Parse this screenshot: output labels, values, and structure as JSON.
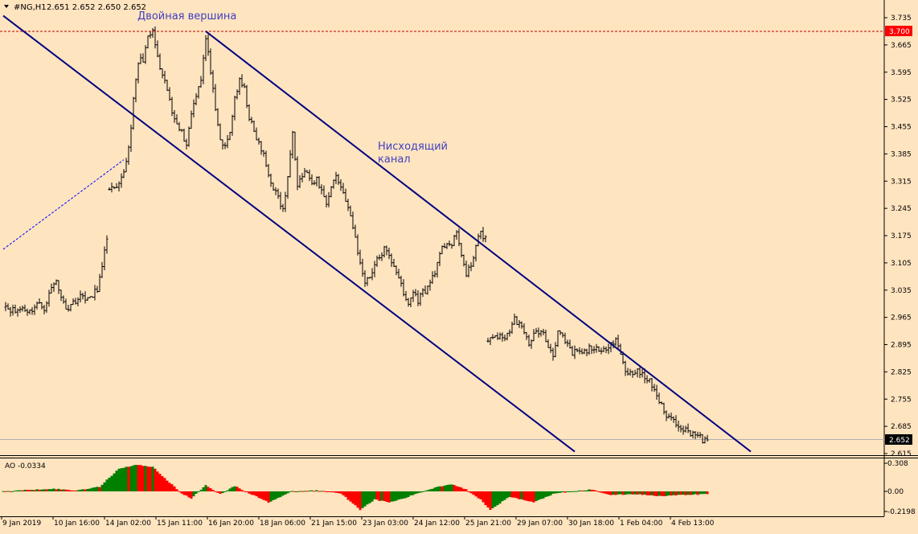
{
  "window": {
    "symbol_title": "#NG,H1",
    "ohlc": "2.651 2.652 2.650 2.652"
  },
  "colors": {
    "background": "#FFE4C0",
    "candles": "#000000",
    "channel": "#000080",
    "annotation": "#4040C0",
    "resistance": "#C00000",
    "ao_up": "#008000",
    "ao_down": "#FF0000",
    "price_tag_red": "#FF0000",
    "price_tag_current": "#000000"
  },
  "annotations": {
    "double_top": "Двойная вершина",
    "channel_line1": "Нисходящий",
    "channel_line2": "канал"
  },
  "price_axis": {
    "ticks": [
      "3.735",
      "3.665",
      "3.595",
      "3.525",
      "3.455",
      "3.385",
      "3.315",
      "3.245",
      "3.175",
      "3.105",
      "3.035",
      "2.965",
      "2.895",
      "2.825",
      "2.755",
      "2.685",
      "2.615"
    ],
    "resistance_tag": "3.700",
    "current_tag": "2.652"
  },
  "time_axis": {
    "labels": [
      "9 Jan 2019",
      "10 Jan 16:00",
      "14 Jan 02:00",
      "15 Jan 11:00",
      "16 Jan 20:00",
      "18 Jan 06:00",
      "21 Jan 15:00",
      "23 Jan 03:00",
      "24 Jan 12:00",
      "25 Jan 21:00",
      "29 Jan 07:00",
      "30 Jan 18:00",
      "1 Feb 04:00",
      "4 Feb 13:00"
    ]
  },
  "indicator": {
    "label": "AO -0.0334",
    "ticks": [
      "0.308",
      "0.00",
      "-0.2198"
    ]
  },
  "chart_data": {
    "type": "candlestick",
    "symbol": "#NG",
    "timeframe": "H1",
    "resistance_level": 3.7,
    "current_price": 2.652,
    "ylim": [
      2.6,
      3.76
    ],
    "price_path": [
      [
        0,
        3.0
      ],
      [
        2,
        2.99
      ],
      [
        5,
        2.98
      ],
      [
        8,
        2.99
      ],
      [
        11,
        2.98
      ],
      [
        14,
        3.0
      ],
      [
        17,
        2.99
      ],
      [
        20,
        3.04
      ],
      [
        22,
        3.06
      ],
      [
        25,
        3.0
      ],
      [
        27,
        2.99
      ],
      [
        30,
        3.01
      ],
      [
        33,
        3.02
      ],
      [
        36,
        3.01
      ],
      [
        39,
        3.04
      ],
      [
        41,
        3.09
      ],
      [
        43,
        3.17
      ],
      [
        44,
        3.3
      ],
      [
        46,
        3.29
      ],
      [
        48,
        3.3
      ],
      [
        50,
        3.34
      ],
      [
        52,
        3.4
      ],
      [
        54,
        3.52
      ],
      [
        56,
        3.62
      ],
      [
        58,
        3.63
      ],
      [
        60,
        3.68
      ],
      [
        62,
        3.7
      ],
      [
        64,
        3.63
      ],
      [
        66,
        3.58
      ],
      [
        68,
        3.55
      ],
      [
        70,
        3.49
      ],
      [
        72,
        3.47
      ],
      [
        74,
        3.44
      ],
      [
        76,
        3.41
      ],
      [
        78,
        3.49
      ],
      [
        80,
        3.54
      ],
      [
        82,
        3.58
      ],
      [
        84,
        3.68
      ],
      [
        86,
        3.6
      ],
      [
        88,
        3.49
      ],
      [
        90,
        3.42
      ],
      [
        92,
        3.4
      ],
      [
        94,
        3.44
      ],
      [
        96,
        3.53
      ],
      [
        98,
        3.57
      ],
      [
        100,
        3.55
      ],
      [
        102,
        3.48
      ],
      [
        104,
        3.44
      ],
      [
        106,
        3.41
      ],
      [
        108,
        3.38
      ],
      [
        110,
        3.33
      ],
      [
        112,
        3.3
      ],
      [
        114,
        3.27
      ],
      [
        116,
        3.24
      ],
      [
        118,
        3.32
      ],
      [
        120,
        3.45
      ],
      [
        122,
        3.31
      ],
      [
        124,
        3.33
      ],
      [
        126,
        3.34
      ],
      [
        128,
        3.3
      ],
      [
        130,
        3.32
      ],
      [
        132,
        3.29
      ],
      [
        134,
        3.26
      ],
      [
        136,
        3.3
      ],
      [
        138,
        3.33
      ],
      [
        140,
        3.3
      ],
      [
        142,
        3.27
      ],
      [
        144,
        3.22
      ],
      [
        146,
        3.17
      ],
      [
        148,
        3.1
      ],
      [
        150,
        3.06
      ],
      [
        152,
        3.07
      ],
      [
        154,
        3.1
      ],
      [
        156,
        3.12
      ],
      [
        158,
        3.14
      ],
      [
        160,
        3.12
      ],
      [
        162,
        3.1
      ],
      [
        164,
        3.07
      ],
      [
        166,
        3.02
      ],
      [
        168,
        3.0
      ],
      [
        170,
        3.03
      ],
      [
        172,
        3.01
      ],
      [
        174,
        3.03
      ],
      [
        176,
        3.04
      ],
      [
        178,
        3.07
      ],
      [
        180,
        3.1
      ],
      [
        182,
        3.14
      ],
      [
        184,
        3.16
      ],
      [
        186,
        3.15
      ],
      [
        188,
        3.18
      ],
      [
        190,
        3.13
      ],
      [
        192,
        3.07
      ],
      [
        194,
        3.1
      ],
      [
        196,
        3.15
      ],
      [
        198,
        3.18
      ],
      [
        200,
        3.17
      ],
      [
        201,
        2.9
      ],
      [
        204,
        2.92
      ],
      [
        207,
        2.91
      ],
      [
        210,
        2.93
      ],
      [
        212,
        2.96
      ],
      [
        214,
        2.95
      ],
      [
        216,
        2.92
      ],
      [
        218,
        2.9
      ],
      [
        220,
        2.92
      ],
      [
        222,
        2.93
      ],
      [
        224,
        2.92
      ],
      [
        226,
        2.89
      ],
      [
        228,
        2.87
      ],
      [
        230,
        2.93
      ],
      [
        232,
        2.91
      ],
      [
        234,
        2.89
      ],
      [
        236,
        2.87
      ],
      [
        238,
        2.88
      ],
      [
        240,
        2.87
      ],
      [
        242,
        2.88
      ],
      [
        244,
        2.89
      ],
      [
        246,
        2.88
      ],
      [
        248,
        2.87
      ],
      [
        250,
        2.89
      ],
      [
        252,
        2.9
      ],
      [
        254,
        2.91
      ],
      [
        256,
        2.87
      ],
      [
        258,
        2.83
      ],
      [
        260,
        2.82
      ],
      [
        262,
        2.83
      ],
      [
        264,
        2.82
      ],
      [
        266,
        2.81
      ],
      [
        268,
        2.8
      ],
      [
        270,
        2.78
      ],
      [
        272,
        2.75
      ],
      [
        274,
        2.72
      ],
      [
        276,
        2.71
      ],
      [
        278,
        2.7
      ],
      [
        280,
        2.69
      ],
      [
        282,
        2.68
      ],
      [
        284,
        2.67
      ],
      [
        286,
        2.67
      ],
      [
        288,
        2.66
      ],
      [
        290,
        2.65
      ],
      [
        292,
        2.65
      ]
    ],
    "descending_channel": {
      "upper_line": [
        [
          84,
          3.7
        ],
        [
          310,
          2.62
        ]
      ],
      "lower_line": [
        [
          0,
          3.74
        ],
        [
          237,
          2.62
        ]
      ]
    },
    "indicator": {
      "name": "AO",
      "value": -0.0334,
      "ylim": [
        -0.2198,
        0.308
      ],
      "path": [
        [
          0,
          0.0
        ],
        [
          20,
          0.03
        ],
        [
          30,
          0.01
        ],
        [
          40,
          0.05
        ],
        [
          44,
          0.15
        ],
        [
          48,
          0.25
        ],
        [
          55,
          0.29
        ],
        [
          62,
          0.27
        ],
        [
          68,
          0.12
        ],
        [
          74,
          -0.02
        ],
        [
          78,
          -0.08
        ],
        [
          84,
          0.07
        ],
        [
          90,
          -0.03
        ],
        [
          96,
          0.06
        ],
        [
          102,
          -0.02
        ],
        [
          110,
          -0.12
        ],
        [
          115,
          -0.06
        ],
        [
          120,
          0.0
        ],
        [
          130,
          0.01
        ],
        [
          140,
          -0.02
        ],
        [
          148,
          -0.2
        ],
        [
          154,
          -0.09
        ],
        [
          160,
          -0.12
        ],
        [
          166,
          -0.08
        ],
        [
          172,
          -0.02
        ],
        [
          180,
          0.05
        ],
        [
          186,
          0.08
        ],
        [
          192,
          0.02
        ],
        [
          198,
          -0.09
        ],
        [
          202,
          -0.2
        ],
        [
          210,
          -0.06
        ],
        [
          220,
          -0.12
        ],
        [
          228,
          -0.03
        ],
        [
          236,
          0.0
        ],
        [
          244,
          0.02
        ],
        [
          252,
          -0.04
        ],
        [
          262,
          -0.03
        ],
        [
          272,
          -0.05
        ],
        [
          282,
          -0.04
        ],
        [
          292,
          -0.03
        ]
      ]
    }
  }
}
